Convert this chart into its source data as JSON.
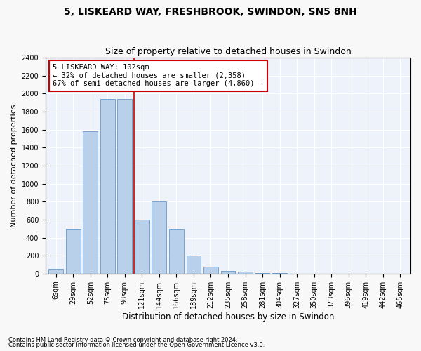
{
  "title": "5, LISKEARD WAY, FRESHBROOK, SWINDON, SN5 8NH",
  "subtitle": "Size of property relative to detached houses in Swindon",
  "xlabel": "Distribution of detached houses by size in Swindon",
  "ylabel": "Number of detached properties",
  "categories": [
    "6sqm",
    "29sqm",
    "52sqm",
    "75sqm",
    "98sqm",
    "121sqm",
    "144sqm",
    "166sqm",
    "189sqm",
    "212sqm",
    "235sqm",
    "258sqm",
    "281sqm",
    "304sqm",
    "327sqm",
    "350sqm",
    "373sqm",
    "396sqm",
    "419sqm",
    "442sqm",
    "465sqm"
  ],
  "values": [
    50,
    500,
    1580,
    1940,
    1940,
    600,
    800,
    500,
    200,
    80,
    30,
    20,
    10,
    5,
    2,
    2,
    1,
    1,
    1,
    1,
    1
  ],
  "bar_color": "#b8d0ea",
  "bar_edge_color": "#6699cc",
  "vline_x": 4.55,
  "vline_color": "#cc0000",
  "annotation_text": "5 LISKEARD WAY: 102sqm\n← 32% of detached houses are smaller (2,358)\n67% of semi-detached houses are larger (4,860) →",
  "annotation_box_color": "#ffffff",
  "annotation_box_edge": "#cc0000",
  "ylim": [
    0,
    2400
  ],
  "yticks": [
    0,
    200,
    400,
    600,
    800,
    1000,
    1200,
    1400,
    1600,
    1800,
    2000,
    2200,
    2400
  ],
  "footnote1": "Contains HM Land Registry data © Crown copyright and database right 2024.",
  "footnote2": "Contains public sector information licensed under the Open Government Licence v3.0.",
  "bg_color": "#eef2fb",
  "grid_color": "#ffffff",
  "title_fontsize": 10,
  "subtitle_fontsize": 9,
  "tick_fontsize": 7,
  "ylabel_fontsize": 8,
  "xlabel_fontsize": 8.5,
  "footnote_fontsize": 6
}
